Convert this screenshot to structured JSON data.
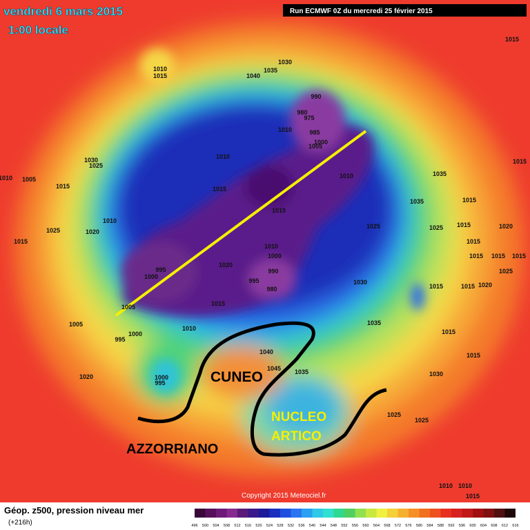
{
  "header": {
    "date": "vendredi 6 mars 2015",
    "time": "1:00 locale",
    "run": "Run ECMWF 0Z du mercredi 25 février 2015"
  },
  "annotations": {
    "cuneo": "CUNEO",
    "azzorriano": "AZZORRIANO",
    "nucleo": [
      "NUCLEO",
      "ARTICO"
    ]
  },
  "copyright": "Copyright 2015 Meteociel.fr",
  "footer": {
    "title": "Géop. z500, pression niveau mer",
    "subtitle": "(+216h)"
  },
  "legend": {
    "labels": [
      496,
      500,
      504,
      508,
      512,
      516,
      520,
      524,
      528,
      532,
      536,
      540,
      544,
      548,
      552,
      556,
      560,
      564,
      568,
      572,
      576,
      580,
      584,
      588,
      592,
      596,
      600,
      604,
      608,
      612,
      616
    ]
  },
  "isobars": [
    1010,
    1015,
    1030,
    1035,
    1040,
    990,
    980,
    975,
    985,
    1000,
    1005,
    1010,
    1010,
    1030,
    1025,
    1010,
    1005,
    1015,
    1015,
    1015,
    1010,
    1035,
    1035,
    1015,
    1015,
    1025,
    1025,
    1015,
    1020,
    1015,
    1015,
    1015,
    1015,
    1025,
    1015,
    1015,
    1020,
    1030,
    1010,
    1025,
    1020,
    1015,
    995,
    1000,
    1020,
    1010,
    1000,
    990,
    995,
    980,
    1015,
    1005,
    1005,
    1010,
    1000,
    995,
    1035,
    1015,
    1015,
    1040,
    1045,
    1035,
    1000,
    995,
    1020,
    1030,
    1025,
    1025,
    1015,
    1010,
    1010,
    1015
  ]
}
